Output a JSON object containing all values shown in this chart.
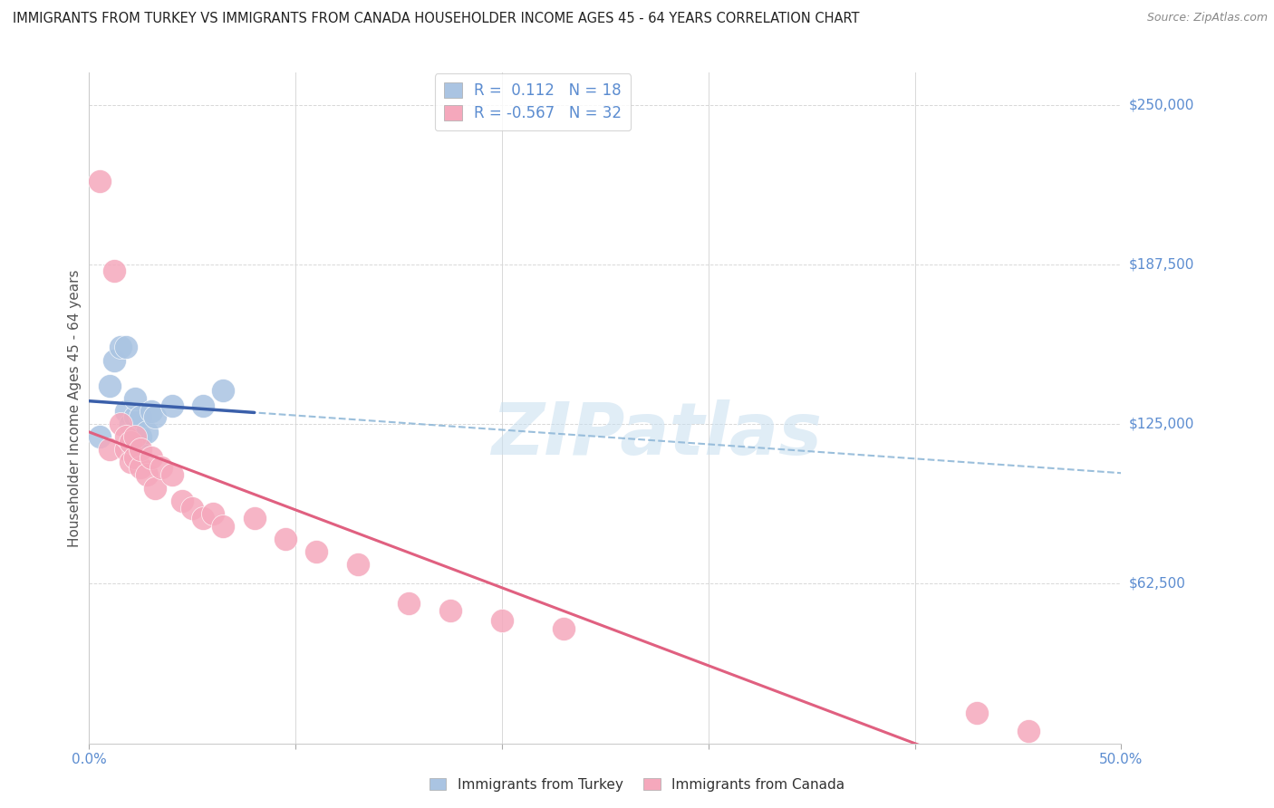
{
  "title": "IMMIGRANTS FROM TURKEY VS IMMIGRANTS FROM CANADA HOUSEHOLDER INCOME AGES 45 - 64 YEARS CORRELATION CHART",
  "source": "Source: ZipAtlas.com",
  "ylabel": "Householder Income Ages 45 - 64 years",
  "xlim": [
    0.0,
    0.5
  ],
  "ylim": [
    0,
    262500
  ],
  "yticks": [
    0,
    62500,
    125000,
    187500,
    250000
  ],
  "ytick_labels": [
    "",
    "$62,500",
    "$125,000",
    "$187,500",
    "$250,000"
  ],
  "xtick_positions": [
    0.0,
    0.1,
    0.2,
    0.3,
    0.4,
    0.5
  ],
  "xtick_labels": [
    "0.0%",
    "",
    "",
    "",
    "",
    "50.0%"
  ],
  "watermark": "ZIPatlas",
  "turkey_R": 0.112,
  "turkey_N": 18,
  "canada_R": -0.567,
  "canada_N": 32,
  "turkey_color": "#aac4e2",
  "canada_color": "#f5a8bc",
  "turkey_line_color": "#3a5faa",
  "canada_line_color": "#e06080",
  "dashed_line_color": "#90b8d8",
  "axis_color": "#5b8cd0",
  "grid_color": "#d8d8d8",
  "title_color": "#222222",
  "source_color": "#888888",
  "background_color": "#ffffff",
  "turkey_points_x": [
    0.005,
    0.01,
    0.012,
    0.015,
    0.018,
    0.018,
    0.02,
    0.02,
    0.022,
    0.022,
    0.025,
    0.025,
    0.028,
    0.03,
    0.032,
    0.04,
    0.055,
    0.065
  ],
  "turkey_points_y": [
    120000,
    140000,
    150000,
    155000,
    130000,
    155000,
    118000,
    125000,
    128000,
    135000,
    120000,
    128000,
    122000,
    130000,
    128000,
    132000,
    132000,
    138000
  ],
  "canada_points_x": [
    0.005,
    0.01,
    0.012,
    0.015,
    0.018,
    0.018,
    0.02,
    0.02,
    0.022,
    0.022,
    0.025,
    0.025,
    0.028,
    0.03,
    0.032,
    0.035,
    0.04,
    0.045,
    0.05,
    0.055,
    0.06,
    0.065,
    0.08,
    0.095,
    0.11,
    0.13,
    0.155,
    0.175,
    0.2,
    0.23,
    0.43,
    0.455
  ],
  "canada_points_y": [
    220000,
    115000,
    185000,
    125000,
    115000,
    120000,
    110000,
    118000,
    112000,
    120000,
    108000,
    115000,
    105000,
    112000,
    100000,
    108000,
    105000,
    95000,
    92000,
    88000,
    90000,
    85000,
    88000,
    80000,
    75000,
    70000,
    55000,
    52000,
    48000,
    45000,
    12000,
    5000
  ],
  "legend_labels": [
    "R =  0.112   N = 18",
    "R = -0.567   N = 32"
  ]
}
